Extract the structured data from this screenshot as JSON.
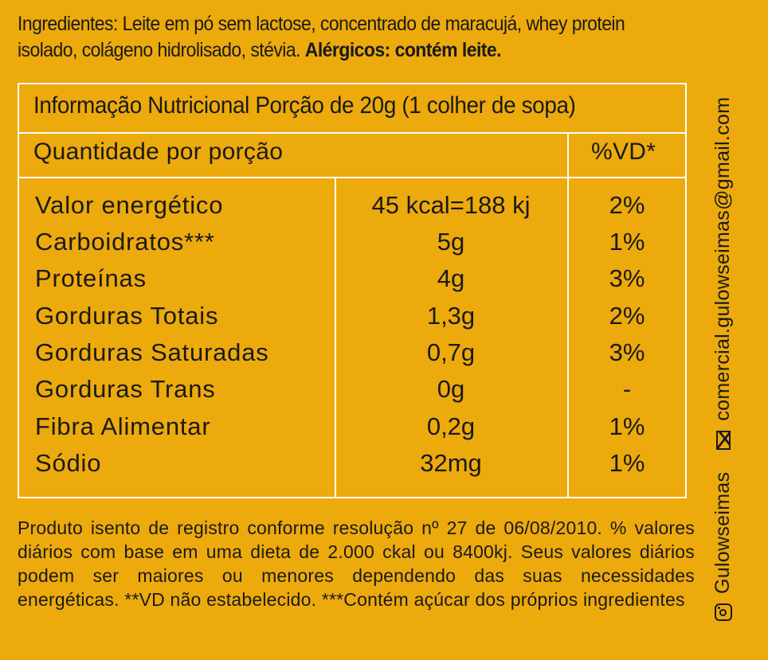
{
  "ingredients": {
    "text": "Ingredientes: Leite em pó sem lactose, concentrado de maracujá, whey protein isolado, colágeno hidrolisado, stévia.",
    "allergens": "Alérgicos: contém leite."
  },
  "table": {
    "title": "Informação Nutricional Porção de 20g (1 colher de sopa)",
    "header_left": "Quantidade por porção",
    "header_right": "%VD*",
    "rows": [
      {
        "name": "Valor energético",
        "amount": "45 kcal=188 kj",
        "vd": "2%"
      },
      {
        "name": "Carboidratos***",
        "amount": "5g",
        "vd": "1%"
      },
      {
        "name": "Proteínas",
        "amount": "4g",
        "vd": "3%"
      },
      {
        "name": "Gorduras Totais",
        "amount": "1,3g",
        "vd": "2%"
      },
      {
        "name": "Gorduras Saturadas",
        "amount": "0,7g",
        "vd": "3%"
      },
      {
        "name": "Gorduras Trans",
        "amount": "0g",
        "vd": "-"
      },
      {
        "name": "Fibra Alimentar",
        "amount": "0,2g",
        "vd": "1%"
      },
      {
        "name": "Sódio",
        "amount": "32mg",
        "vd": "1%"
      }
    ]
  },
  "footnote": {
    "text": "Produto isento de registro conforme resolução nº 27 de 06/08/2010. % valores diários com base em uma dieta de 2.000 ckal ou 8400kj. Seus valores diários podem ser maiores ou menores dependendo das suas necessidades energéticas. **VD não estabelecido. ***Contém açúcar dos próprios ingredientes"
  },
  "contact": {
    "instagram_handle": "Gulowseimas",
    "instagram_icon": "instagram-icon",
    "email": "comercial.gulowseimas@gmail.com",
    "email_icon": "envelope-icon"
  },
  "colors": {
    "background": "#EDAA0C",
    "lines": "#FFFFFF",
    "text": "#1A1A1A"
  }
}
